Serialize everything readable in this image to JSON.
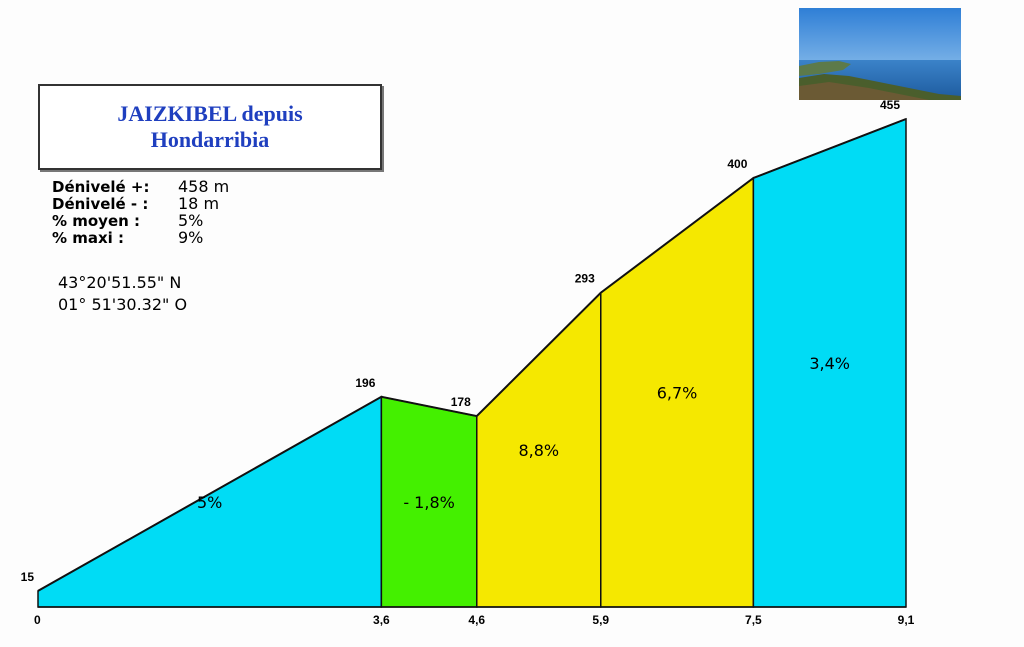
{
  "title_line1": "JAIZKIBEL depuis",
  "title_line2": "Hondarribia",
  "stats": [
    {
      "label": "Dénivelé +:",
      "value": "458  m"
    },
    {
      "label": "Dénivelé - :",
      "value": "  18  m"
    },
    {
      "label": "% moyen  :",
      "value": "5%"
    },
    {
      "label": "% maxi  :",
      "value": "  9%"
    }
  ],
  "coords": [
    "43°20'51.55\"  N",
    "01°  51'30.32\"  O"
  ],
  "photo_icon": "landscape-photo-coastline",
  "colors": {
    "cyan": "#00dcf5",
    "green": "#44f000",
    "yellow": "#f5e800",
    "title": "#1f3fbf",
    "outline": "#111111"
  },
  "chart_data": {
    "type": "area",
    "title": "JAIZKIBEL depuis Hondarribia",
    "xlabel": "",
    "ylabel": "",
    "xlim": [
      0,
      9.1
    ],
    "ylim": [
      0,
      455
    ],
    "grid": false,
    "points": [
      {
        "x": 0,
        "x_label": "0",
        "y": 15,
        "y_label": "15"
      },
      {
        "x": 3.6,
        "x_label": "3,6",
        "y": 196,
        "y_label": "196"
      },
      {
        "x": 4.6,
        "x_label": "4,6",
        "y": 178,
        "y_label": "178"
      },
      {
        "x": 5.9,
        "x_label": "5,9",
        "y": 293,
        "y_label": "293"
      },
      {
        "x": 7.5,
        "x_label": "7,5",
        "y": 400,
        "y_label": "400"
      },
      {
        "x": 9.1,
        "x_label": "9,1",
        "y": 455,
        "y_label": "455"
      }
    ],
    "segments": [
      {
        "from": 0,
        "to": 3.6,
        "gradient_label": "5%",
        "color": "#00dcf5"
      },
      {
        "from": 3.6,
        "to": 4.6,
        "gradient_label": "- 1,8%",
        "color": "#44f000"
      },
      {
        "from": 4.6,
        "to": 5.9,
        "gradient_label": "8,8%",
        "color": "#f5e800"
      },
      {
        "from": 5.9,
        "to": 7.5,
        "gradient_label": "6,7%",
        "color": "#f5e800"
      },
      {
        "from": 7.5,
        "to": 9.1,
        "gradient_label": "3,4%",
        "color": "#00dcf5"
      }
    ]
  }
}
